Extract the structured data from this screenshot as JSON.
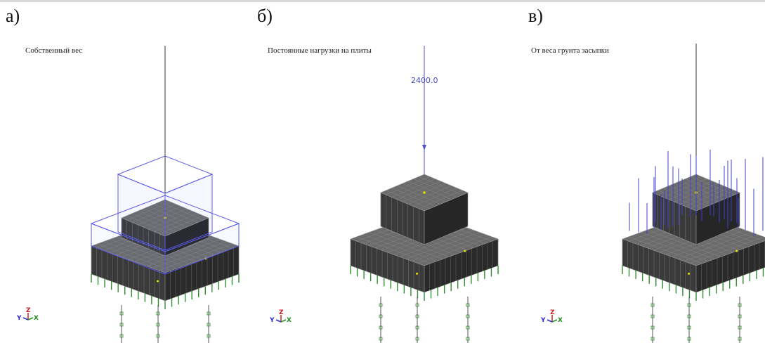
{
  "panels": [
    {
      "letter": "а)",
      "title": "Собственный вес"
    },
    {
      "letter": "б)",
      "title": "Постоянные нагрузки на плиты",
      "load_value": "2400.0"
    },
    {
      "letter": "в)",
      "title": "От веса грунта засыпки"
    }
  ],
  "axis_labels": {
    "y": "Y",
    "z": "Z",
    "x": "X"
  },
  "colors": {
    "mesh_fill": "#3a3a3a",
    "mesh_top": "#6b6b6b",
    "mesh_line": "#9a9a9a",
    "load_blue": "#4040d0",
    "pile_green": "#2f8f2f",
    "marker_yellow": "#e8e000"
  }
}
